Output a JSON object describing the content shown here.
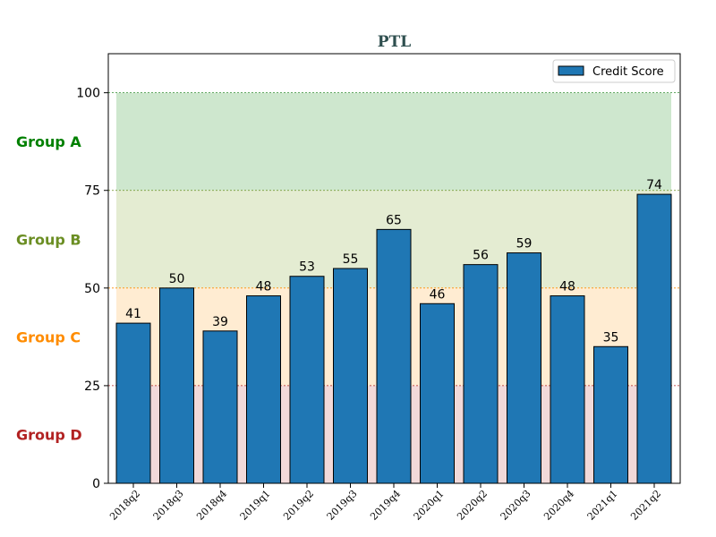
{
  "chart_data": {
    "type": "bar",
    "title": "PTL",
    "title_color": "#2f4f4f",
    "categories": [
      "2018q2",
      "2018q3",
      "2018q4",
      "2019q1",
      "2019q2",
      "2019q3",
      "2019q4",
      "2020q1",
      "2020q2",
      "2020q3",
      "2020q4",
      "2021q1",
      "2021q2"
    ],
    "series": [
      {
        "name": "Credit Score",
        "values": [
          41,
          50,
          39,
          48,
          53,
          55,
          65,
          46,
          56,
          59,
          48,
          35,
          74
        ],
        "color": "#1f77b4"
      }
    ],
    "ylim": [
      0,
      110
    ],
    "yticks": [
      0,
      25,
      50,
      75,
      100
    ],
    "legend": {
      "position": "top-right"
    },
    "bands": [
      {
        "label": "Group A",
        "from": 75,
        "to": 100,
        "fill": "#9ecf9e",
        "line": "#2e8b2e",
        "label_color": "#008000"
      },
      {
        "label": "Group B",
        "from": 50,
        "to": 75,
        "fill": "#c9d9a5",
        "line": "#6b8e23",
        "label_color": "#6b8e23"
      },
      {
        "label": "Group C",
        "from": 25,
        "to": 50,
        "fill": "#ffd9a6",
        "line": "#ff8c00",
        "label_color": "#ff8c00"
      },
      {
        "label": "Group D",
        "from": 0,
        "to": 25,
        "fill": "#e6b3b3",
        "line": "#b22222",
        "label_color": "#b22222"
      }
    ]
  }
}
